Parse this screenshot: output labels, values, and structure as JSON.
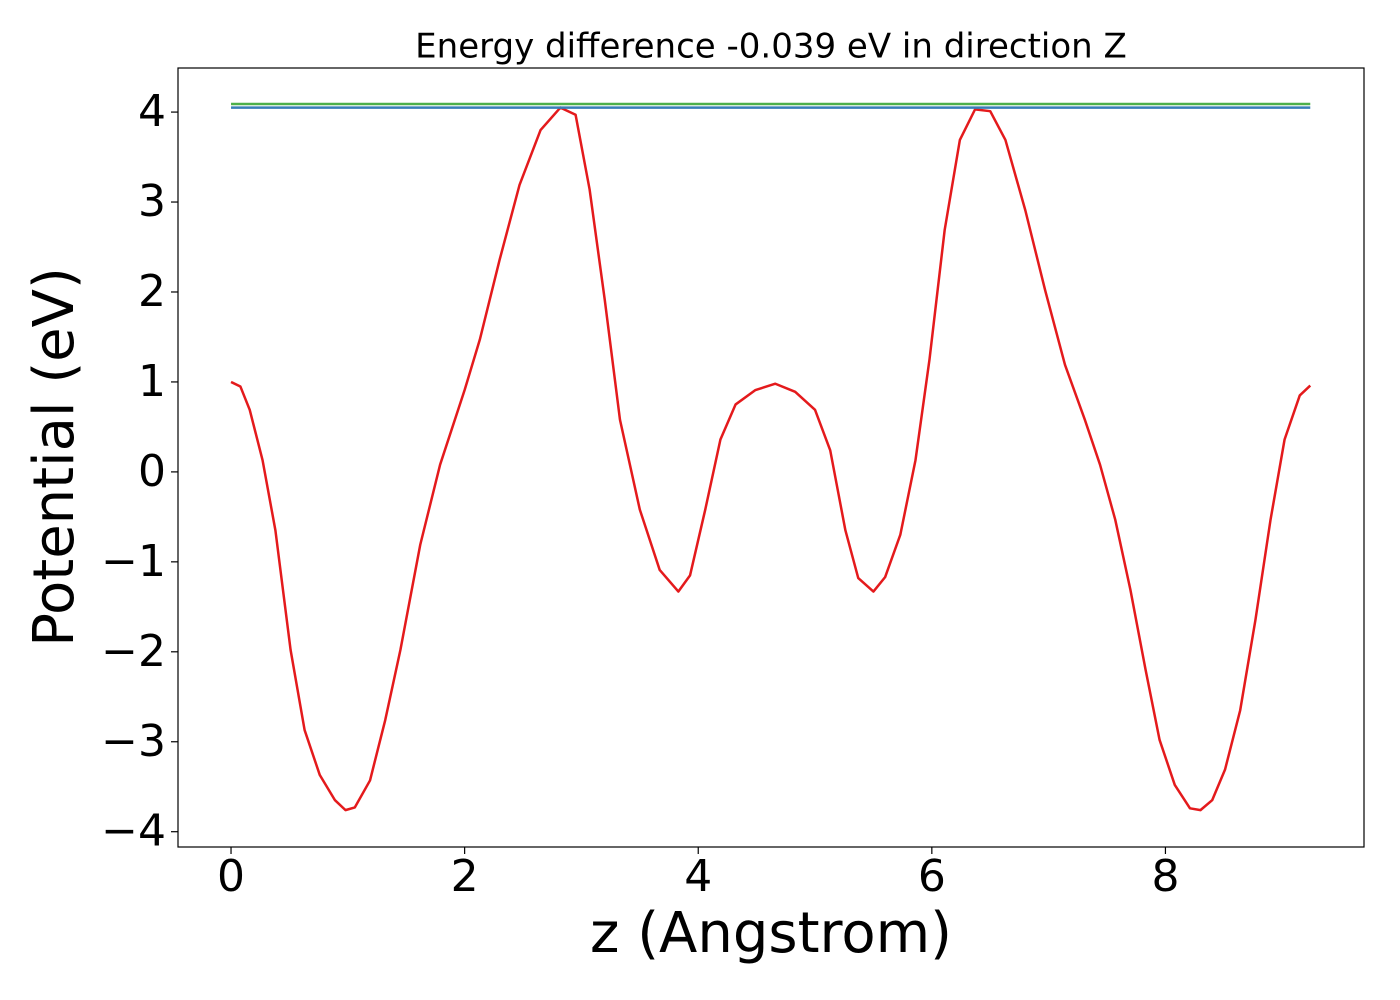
{
  "chart_data": {
    "type": "line",
    "title": "Energy difference -0.039 eV in direction Z",
    "x_label": "z (Angstrom)",
    "y_label": "Potential (eV)",
    "xlim": [
      -0.454,
      9.7
    ],
    "ylim": [
      -4.17,
      4.49
    ],
    "xticks": [
      0,
      2,
      4,
      6,
      8
    ],
    "yticks": [
      {
        "value": -4,
        "label": "−4"
      },
      {
        "value": -3,
        "label": "−3"
      },
      {
        "value": -2,
        "label": "−2"
      },
      {
        "value": -1,
        "label": "−1"
      },
      0,
      1,
      2,
      3,
      4
    ],
    "grid": false,
    "series": [
      {
        "color": "#e41a1c",
        "x": [
          0,
          0.08,
          0.16,
          0.27,
          0.38,
          0.51,
          0.63,
          0.76,
          0.89,
          0.98,
          1.06,
          1.19,
          1.32,
          1.45,
          1.62,
          1.79,
          2.0,
          2.13,
          2.3,
          2.47,
          2.65,
          2.82,
          2.95,
          3.07,
          3.2,
          3.33,
          3.5,
          3.67,
          3.83,
          3.93,
          4.06,
          4.19,
          4.32,
          4.49,
          4.66,
          4.83,
          5.0,
          5.13,
          5.26,
          5.37,
          5.5,
          5.6,
          5.73,
          5.86,
          5.98,
          6.11,
          6.24,
          6.37,
          6.5,
          6.63,
          6.8,
          6.97,
          7.14,
          7.31,
          7.44,
          7.57,
          7.7,
          7.83,
          7.95,
          8.08,
          8.21,
          8.3,
          8.4,
          8.51,
          8.64,
          8.77,
          8.9,
          9.02,
          9.15,
          9.24
        ],
        "values": [
          1.0,
          0.95,
          0.69,
          0.13,
          -0.65,
          -1.98,
          -2.87,
          -3.37,
          -3.65,
          -3.76,
          -3.73,
          -3.43,
          -2.76,
          -1.98,
          -0.81,
          0.08,
          0.91,
          1.47,
          2.36,
          3.19,
          3.8,
          4.05,
          3.97,
          3.14,
          1.91,
          0.58,
          -0.42,
          -1.09,
          -1.33,
          -1.15,
          -0.42,
          0.36,
          0.75,
          0.91,
          0.98,
          0.89,
          0.69,
          0.24,
          -0.65,
          -1.18,
          -1.33,
          -1.17,
          -0.7,
          0.13,
          1.25,
          2.69,
          3.69,
          4.03,
          4.01,
          3.69,
          2.91,
          2.02,
          1.19,
          0.58,
          0.08,
          -0.53,
          -1.31,
          -2.2,
          -2.98,
          -3.48,
          -3.74,
          -3.76,
          -3.65,
          -3.31,
          -2.65,
          -1.65,
          -0.53,
          0.36,
          0.85,
          0.96
        ]
      },
      {
        "color": "#4daf4a",
        "x": [
          0,
          9.24
        ],
        "values": [
          4.09,
          4.09
        ]
      },
      {
        "color": "#377eb8",
        "x": [
          0,
          9.24
        ],
        "values": [
          4.05,
          4.05
        ]
      }
    ]
  }
}
